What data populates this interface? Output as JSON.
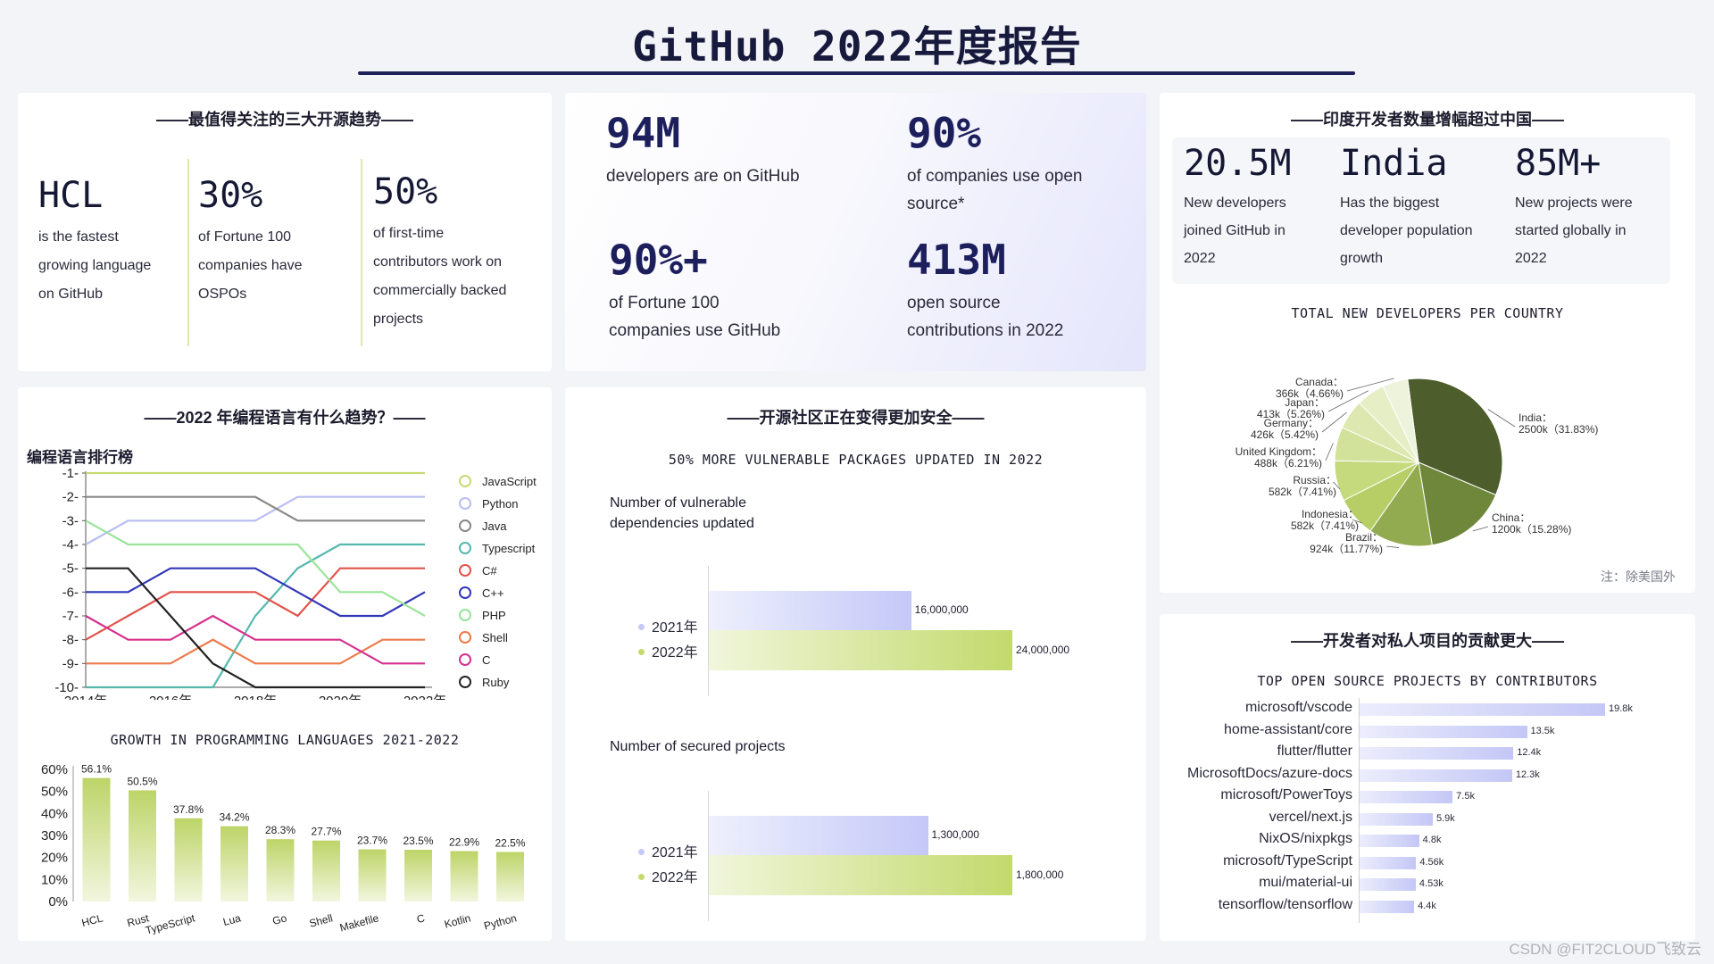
{
  "header": {
    "title": "GitHub 2022年度报告"
  },
  "trends": {
    "title": "——最值得关注的三大开源趋势——",
    "items": [
      {
        "big": "HCL",
        "lines": [
          "is the fastest",
          "growing language",
          "on GitHub"
        ]
      },
      {
        "big": "30%",
        "lines": [
          "of Fortune 100",
          "companies have",
          "OSPOs"
        ]
      },
      {
        "big": "50%",
        "lines": [
          "of first-time",
          "contributors work on",
          "commercially backed",
          "projects"
        ]
      }
    ]
  },
  "stats": [
    {
      "num": "94M",
      "lines": [
        "developers are on GitHub"
      ]
    },
    {
      "num": "90%",
      "lines": [
        "of companies use open",
        "source*"
      ]
    },
    {
      "num": "90%+",
      "lines": [
        "of Fortune 100",
        "companies use GitHub"
      ]
    },
    {
      "num": "413M",
      "lines": [
        "open source",
        "contributions in 2022"
      ]
    }
  ],
  "india": {
    "title": "——印度开发者数量增幅超过中国——",
    "items": [
      {
        "big": "20.5M",
        "lines": [
          "New developers",
          "joined GitHub in",
          "2022"
        ]
      },
      {
        "big": "India",
        "lines": [
          "Has the biggest",
          "developer population",
          "growth"
        ]
      },
      {
        "big": "85M+",
        "lines": [
          "New projects were",
          "started globally in",
          "2022"
        ]
      }
    ],
    "pie_title": "TOTAL NEW DEVELOPERS PER COUNTRY",
    "note": "注：除美国外"
  },
  "languages": {
    "title": "——2022 年编程语言有什么趋势？——",
    "rank_title": "编程语言排行榜",
    "growth_title": "GROWTH IN PROGRAMMING LANGUAGES 2021-2022"
  },
  "security": {
    "title": "——开源社区正在变得更加安全——",
    "subtitle": "50% MORE VULNERABLE PACKAGES UPDATED IN 2022",
    "group1_title_lines": [
      "Number of vulnerable",
      "dependencies updated"
    ],
    "group2_title": "Number of secured projects",
    "year_2021": "2021年",
    "year_2022": "2022年",
    "g1": {
      "v2021": "16,000,000",
      "v2022": "24,000,000"
    },
    "g2": {
      "v2021": "1,300,000",
      "v2022": "1,800,000"
    }
  },
  "contrib": {
    "title": "——开发者对私人项目的贡献更大——",
    "subtitle": "TOP OPEN SOURCE PROJECTS BY CONTRIBUTORS"
  },
  "watermark": "CSDN @FIT2CLOUD飞致云",
  "colors": {
    "accent_green": "#c3da6d",
    "accent_lavender": "#c6c9f7",
    "navy": "#1c1f5c"
  },
  "chart_data": [
    {
      "type": "line",
      "title": "编程语言排行榜",
      "x": [
        "2014年",
        "2015年",
        "2016年",
        "2017年",
        "2018年",
        "2019年",
        "2020年",
        "2021年",
        "2022年"
      ],
      "x_tick_labels": [
        "2014年",
        "2016年",
        "2018年",
        "2020年",
        "2022年"
      ],
      "y_tick_labels": [
        "-1-",
        "-2-",
        "-3-",
        "-4-",
        "-5-",
        "-6-",
        "-7-",
        "-8-",
        "-9-",
        "-10-"
      ],
      "ylim": [
        1,
        10
      ],
      "series": [
        {
          "name": "JavaScript",
          "color": "#c6db74",
          "values": [
            1,
            1,
            1,
            1,
            1,
            1,
            1,
            1,
            1
          ]
        },
        {
          "name": "Python",
          "color": "#b9bdf3",
          "values": [
            4,
            3,
            3,
            3,
            3,
            2,
            2,
            2,
            2
          ]
        },
        {
          "name": "Java",
          "color": "#888888",
          "values": [
            2,
            2,
            2,
            2,
            2,
            3,
            3,
            3,
            3
          ]
        },
        {
          "name": "Typescript",
          "color": "#55b8ad",
          "values": [
            10,
            10,
            10,
            10,
            7,
            5,
            4,
            4,
            4
          ]
        },
        {
          "name": "C#",
          "color": "#e2524a",
          "values": [
            8,
            7,
            6,
            6,
            6,
            7,
            5,
            5,
            5
          ]
        },
        {
          "name": "C++",
          "color": "#3237b8",
          "values": [
            6,
            6,
            5,
            5,
            5,
            6,
            7,
            7,
            6
          ]
        },
        {
          "name": "PHP",
          "color": "#9be39a",
          "values": [
            3,
            4,
            4,
            4,
            4,
            4,
            6,
            6,
            7
          ]
        },
        {
          "name": "Shell",
          "color": "#ec7a4b",
          "values": [
            9,
            9,
            9,
            8,
            9,
            9,
            9,
            8,
            8
          ]
        },
        {
          "name": "C",
          "color": "#d5308d",
          "values": [
            7,
            8,
            8,
            7,
            8,
            8,
            8,
            9,
            9
          ]
        },
        {
          "name": "Ruby",
          "color": "#222222",
          "values": [
            5,
            5,
            7,
            9,
            10,
            10,
            10,
            10,
            10
          ]
        }
      ]
    },
    {
      "type": "bar",
      "title": "GROWTH IN PROGRAMMING LANGUAGES 2021-2022",
      "categories": [
        "HCL",
        "Rust",
        "TypeScript",
        "Lua",
        "Go",
        "Shell",
        "Makefile",
        "C",
        "Kotlin",
        "Python"
      ],
      "values": [
        56.1,
        50.5,
        37.8,
        34.2,
        28.3,
        27.7,
        23.7,
        23.5,
        22.9,
        22.5
      ],
      "value_labels": [
        "56.1%",
        "50.5%",
        "37.8%",
        "34.2%",
        "28.3%",
        "27.7%",
        "23.7%",
        "23.5%",
        "22.9%",
        "22.5%"
      ],
      "y_tick_labels": [
        "0%",
        "10%",
        "20%",
        "30%",
        "40%",
        "50%",
        "60%"
      ],
      "ylim": [
        0,
        60
      ]
    },
    {
      "type": "pie",
      "title": "TOTAL NEW DEVELOPERS PER COUNTRY",
      "slices": [
        {
          "label": "India",
          "value": 2500,
          "display": "2500k（31.83%)",
          "color": "#4d5d2b"
        },
        {
          "label": "China",
          "value": 1200,
          "display": "1200k（15.28%)",
          "color": "#6e873b"
        },
        {
          "label": "Brazil",
          "value": 924,
          "display": "924k（11.77%)",
          "color": "#93ab50"
        },
        {
          "label": "Indonesia",
          "value": 582,
          "display": "582k（7.41%)",
          "color": "#b7cd66"
        },
        {
          "label": "Russia",
          "value": 582,
          "display": "582k（7.41%)",
          "color": "#c5d97d"
        },
        {
          "label": "United Kingdom",
          "value": 488,
          "display": "488k（6.21%)",
          "color": "#d2e29b"
        },
        {
          "label": "Germany",
          "value": 426,
          "display": "426k（5.42%)",
          "color": "#dce8b0"
        },
        {
          "label": "Japan",
          "value": 413,
          "display": "413k（5.26%)",
          "color": "#e6eec6"
        },
        {
          "label": "Canada",
          "value": 366,
          "display": "366k（4.66%)",
          "color": "#eef3dc"
        }
      ]
    },
    {
      "type": "bar",
      "title": "Number of vulnerable dependencies updated",
      "categories": [
        "2021年",
        "2022年"
      ],
      "values": [
        16000000,
        24000000
      ],
      "value_labels": [
        "16,000,000",
        "24,000,000"
      ]
    },
    {
      "type": "bar",
      "title": "Number of secured projects",
      "categories": [
        "2021年",
        "2022年"
      ],
      "values": [
        1300000,
        1800000
      ],
      "value_labels": [
        "1,300,000",
        "1,800,000"
      ]
    },
    {
      "type": "bar",
      "title": "TOP OPEN SOURCE PROJECTS BY CONTRIBUTORS",
      "categories": [
        "microsoft/vscode",
        "home-assistant/core",
        "flutter/flutter",
        "MicrosoftDocs/azure-docs",
        "microsoft/PowerToys",
        "vercel/next.js",
        "NixOS/nixpkgs",
        "microsoft/TypeScript",
        "mui/material-ui",
        "tensorflow/tensorflow"
      ],
      "values": [
        19.8,
        13.5,
        12.4,
        12.3,
        7.5,
        5.9,
        4.8,
        4.56,
        4.53,
        4.4
      ],
      "value_labels": [
        "19.8k",
        "13.5k",
        "12.4k",
        "12.3k",
        "7.5k",
        "5.9k",
        "4.8k",
        "4.56k",
        "4.53k",
        "4.4k"
      ]
    }
  ]
}
